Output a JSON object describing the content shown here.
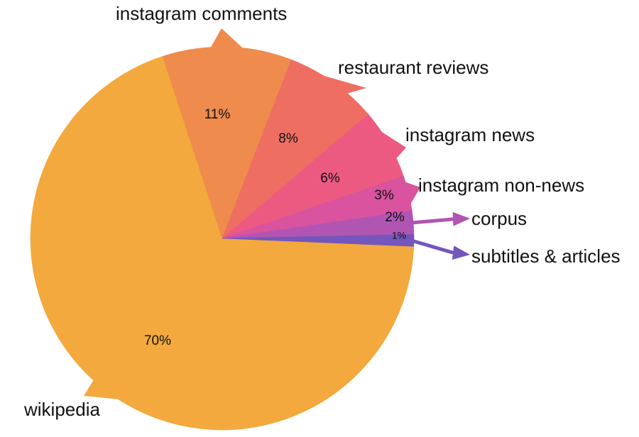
{
  "chart_data": {
    "type": "pie",
    "title": "",
    "slices": [
      {
        "label": "wikipedia",
        "value": 70,
        "pct_label": "70%",
        "color": "#F3A93D"
      },
      {
        "label": "instagram comments",
        "value": 11,
        "pct_label": "11%",
        "color": "#EE8B4D"
      },
      {
        "label": "restaurant reviews",
        "value": 8,
        "pct_label": "8%",
        "color": "#EE6E62"
      },
      {
        "label": "instagram news",
        "value": 6,
        "pct_label": "6%",
        "color": "#EC5A82"
      },
      {
        "label": "instagram non-news",
        "value": 3,
        "pct_label": "3%",
        "color": "#D9539E"
      },
      {
        "label": "corpus",
        "value": 2,
        "pct_label": "2%",
        "color": "#B155B3"
      },
      {
        "label": "subtitles & articles",
        "value": 1,
        "pct_label": "1%",
        "color": "#7456BC"
      }
    ],
    "legend": "none"
  }
}
